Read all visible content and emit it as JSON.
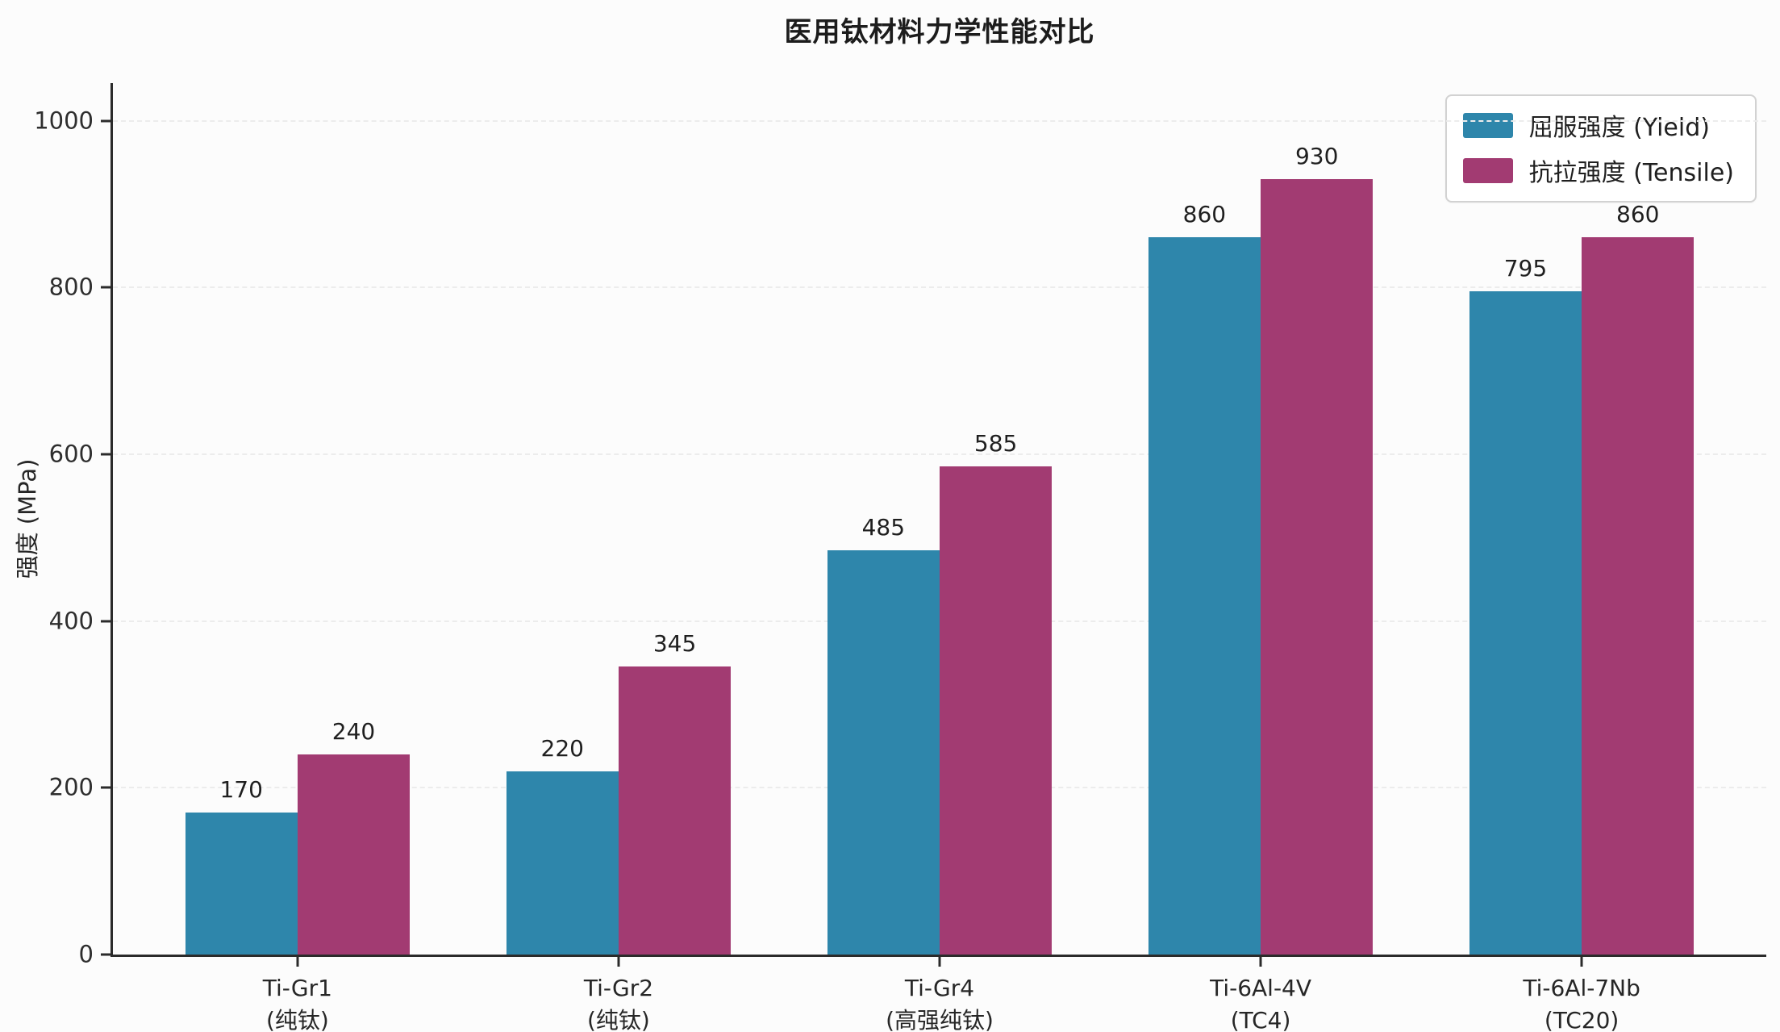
{
  "title": "医用钛材料力学性能对比",
  "ylabel": "强度 (MPa)",
  "colors": {
    "yield": "#2E86AB",
    "tensile": "#A23B72",
    "axis": "#2b2b2b",
    "grid": "#ececec",
    "background": "#fcfcfc"
  },
  "chart_data": {
    "type": "bar",
    "title": "医用钛材料力学性能对比",
    "xlabel": "",
    "ylabel": "强度 (MPa)",
    "ylim": [
      0,
      1045
    ],
    "yticks": [
      0,
      200,
      400,
      600,
      800,
      1000
    ],
    "grid": "horizontal dashed, very light",
    "legend_position": "upper right",
    "bar_value_labels": true,
    "categories": [
      {
        "line1": "Ti-Gr1",
        "line2": "(纯钛)"
      },
      {
        "line1": "Ti-Gr2",
        "line2": "(纯钛)"
      },
      {
        "line1": "Ti-Gr4",
        "line2": "(高强纯钛)"
      },
      {
        "line1": "Ti-6Al-4V",
        "line2": "(TC4)"
      },
      {
        "line1": "Ti-6Al-7Nb",
        "line2": "(TC20)"
      }
    ],
    "series": [
      {
        "name": "屈服强度 (Yield)",
        "color": "#2E86AB",
        "values": [
          170,
          220,
          485,
          860,
          795
        ]
      },
      {
        "name": "抗拉强度 (Tensile)",
        "color": "#A23B72",
        "values": [
          240,
          345,
          585,
          930,
          860
        ]
      }
    ]
  }
}
